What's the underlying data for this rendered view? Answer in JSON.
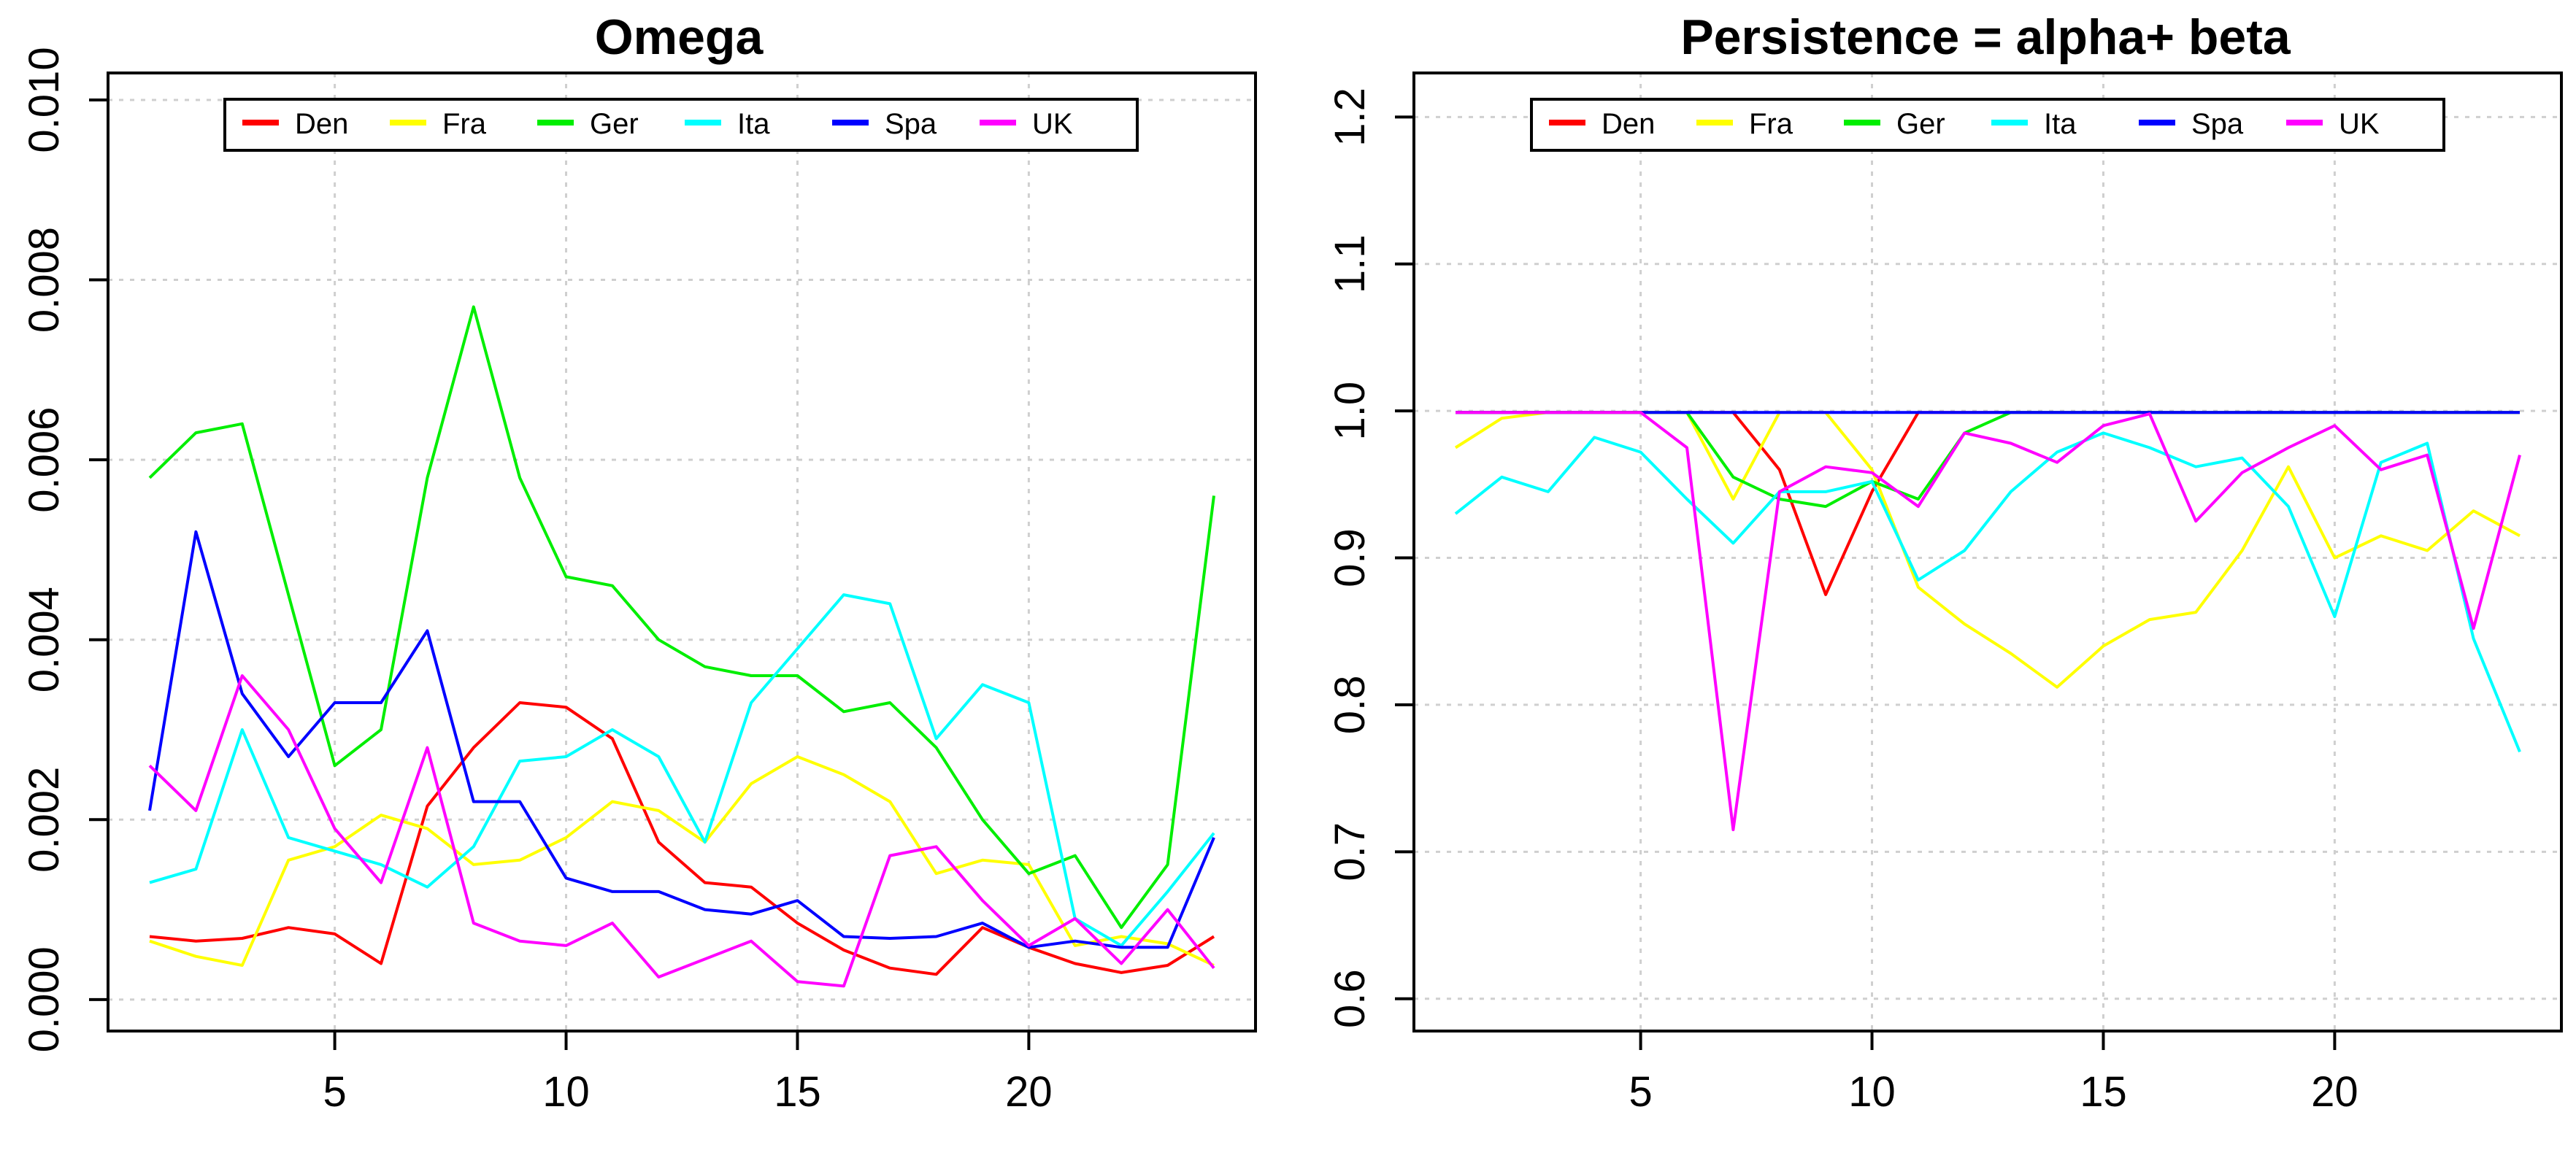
{
  "colors": {
    "Den": "#ff0000",
    "Fra": "#ffff00",
    "Ger": "#00ee00",
    "Ita": "#00ffff",
    "Spa": "#0000ff",
    "UK": "#ff00ff"
  },
  "chart_data": [
    {
      "type": "line",
      "title": "Omega",
      "xlabel": "",
      "ylabel": "",
      "xlim": [
        0.1,
        24.9
      ],
      "ylim": [
        -0.00035,
        0.0103
      ],
      "x_ticks": [
        5,
        10,
        15,
        20
      ],
      "x_tick_labels": [
        "5",
        "10",
        "15",
        "20"
      ],
      "y_ticks": [
        0.0,
        0.002,
        0.004,
        0.006,
        0.008,
        0.01
      ],
      "y_tick_labels": [
        "0.000",
        "0.002",
        "0.004",
        "0.006",
        "0.008",
        "0.010"
      ],
      "grid": true,
      "legend_position": "top",
      "x": [
        1,
        2,
        3,
        4,
        5,
        6,
        7,
        8,
        9,
        10,
        11,
        12,
        13,
        14,
        15,
        16,
        17,
        18,
        19,
        20,
        21,
        22,
        23,
        24
      ],
      "series": [
        {
          "name": "Den",
          "values": [
            0.0007,
            0.00065,
            0.00068,
            0.0008,
            0.00073,
            0.0004,
            0.00215,
            0.0028,
            0.0033,
            0.00325,
            0.0029,
            0.00175,
            0.0013,
            0.00125,
            0.00085,
            0.00055,
            0.00035,
            0.00028,
            0.0008,
            0.00058,
            0.0004,
            0.0003,
            0.00038,
            0.0007
          ]
        },
        {
          "name": "Fra",
          "values": [
            0.00065,
            0.00048,
            0.00038,
            0.00155,
            0.0017,
            0.00205,
            0.0019,
            0.0015,
            0.00155,
            0.0018,
            0.0022,
            0.0021,
            0.00175,
            0.0024,
            0.0027,
            0.0025,
            0.0022,
            0.0014,
            0.00155,
            0.0015,
            0.0006,
            0.0007,
            0.00062,
            0.00038
          ]
        },
        {
          "name": "Ger",
          "values": [
            0.0058,
            0.0063,
            0.0064,
            0.0045,
            0.0026,
            0.003,
            0.0058,
            0.0077,
            0.0058,
            0.0047,
            0.0046,
            0.004,
            0.0037,
            0.0036,
            0.0036,
            0.0032,
            0.0033,
            0.0028,
            0.002,
            0.0014,
            0.0016,
            0.0008,
            0.0015,
            0.0056
          ]
        },
        {
          "name": "Ita",
          "values": [
            0.0013,
            0.00145,
            0.003,
            0.0018,
            0.00165,
            0.0015,
            0.00125,
            0.0017,
            0.00265,
            0.0027,
            0.003,
            0.0027,
            0.00175,
            0.0033,
            0.0039,
            0.0045,
            0.0044,
            0.0029,
            0.0035,
            0.0033,
            0.0009,
            0.0006,
            0.0012,
            0.00185
          ]
        },
        {
          "name": "Spa",
          "values": [
            0.0021,
            0.0052,
            0.0034,
            0.0027,
            0.0033,
            0.0033,
            0.0041,
            0.0022,
            0.0022,
            0.00135,
            0.0012,
            0.0012,
            0.001,
            0.00095,
            0.0011,
            0.0007,
            0.00068,
            0.0007,
            0.00085,
            0.00058,
            0.00065,
            0.00058,
            0.00058,
            0.0018
          ]
        },
        {
          "name": "UK",
          "values": [
            0.0026,
            0.0021,
            0.0036,
            0.003,
            0.0019,
            0.0013,
            0.0028,
            0.00085,
            0.00065,
            0.0006,
            0.00085,
            0.00025,
            0.00045,
            0.00065,
            0.0002,
            0.00015,
            0.0016,
            0.0017,
            0.0011,
            0.0006,
            0.0009,
            0.0004,
            0.001,
            0.00035
          ]
        }
      ]
    },
    {
      "type": "line",
      "title": "Persistence = alpha+ beta",
      "xlabel": "",
      "ylabel": "",
      "xlim": [
        0.1,
        24.9
      ],
      "ylim": [
        0.578,
        1.23
      ],
      "x_ticks": [
        5,
        10,
        15,
        20
      ],
      "x_tick_labels": [
        "5",
        "10",
        "15",
        "20"
      ],
      "y_ticks": [
        0.6,
        0.7,
        0.8,
        0.9,
        1.0,
        1.1,
        1.2
      ],
      "y_tick_labels": [
        "0.6",
        "0.7",
        "0.8",
        "0.9",
        "1.0",
        "1.1",
        "1.2"
      ],
      "grid": true,
      "legend_position": "top",
      "x": [
        1,
        2,
        3,
        4,
        5,
        6,
        7,
        8,
        9,
        10,
        11,
        12,
        13,
        14,
        15,
        16,
        17,
        18,
        19,
        20,
        21,
        22,
        23,
        24
      ],
      "series": [
        {
          "name": "Den",
          "values": [
            0.999,
            0.999,
            0.999,
            0.999,
            0.999,
            0.999,
            0.999,
            0.96,
            0.875,
            0.945,
            0.999,
            0.999,
            0.999,
            0.999,
            0.999,
            0.999,
            0.999,
            0.999,
            0.999,
            0.999,
            0.999,
            0.999,
            0.999,
            0.999
          ]
        },
        {
          "name": "Fra",
          "values": [
            0.975,
            0.995,
            0.999,
            0.999,
            0.999,
            0.999,
            0.94,
            0.999,
            0.999,
            0.96,
            0.88,
            0.855,
            0.835,
            0.812,
            0.84,
            0.858,
            0.863,
            0.905,
            0.962,
            0.9,
            0.915,
            0.905,
            0.932,
            0.915
          ]
        },
        {
          "name": "Ger",
          "values": [
            0.999,
            0.999,
            0.999,
            0.999,
            0.999,
            0.999,
            0.955,
            0.94,
            0.935,
            0.952,
            0.94,
            0.985,
            0.999,
            0.999,
            0.999,
            0.999,
            0.999,
            0.999,
            0.999,
            0.999,
            0.999,
            0.999,
            0.999,
            0.999
          ]
        },
        {
          "name": "Ita",
          "values": [
            0.93,
            0.955,
            0.945,
            0.982,
            0.972,
            0.94,
            0.91,
            0.945,
            0.945,
            0.952,
            0.885,
            0.905,
            0.945,
            0.972,
            0.985,
            0.975,
            0.962,
            0.968,
            0.935,
            0.86,
            0.965,
            0.978,
            0.845,
            0.768
          ]
        },
        {
          "name": "Spa",
          "values": [
            0.999,
            0.999,
            0.999,
            0.999,
            0.999,
            0.999,
            0.999,
            0.999,
            0.999,
            0.999,
            0.999,
            0.999,
            0.999,
            0.999,
            0.999,
            0.999,
            0.999,
            0.999,
            0.999,
            0.999,
            0.999,
            0.999,
            0.999,
            0.999
          ]
        },
        {
          "name": "UK",
          "values": [
            0.999,
            0.999,
            0.999,
            0.999,
            0.999,
            0.975,
            0.715,
            0.945,
            0.962,
            0.958,
            0.935,
            0.985,
            0.978,
            0.965,
            0.99,
            0.998,
            0.925,
            0.958,
            0.975,
            0.99,
            0.96,
            0.97,
            0.852,
            0.97
          ]
        }
      ]
    }
  ]
}
